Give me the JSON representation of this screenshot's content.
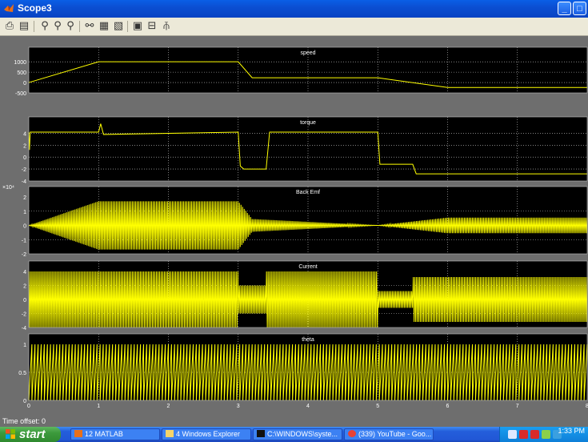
{
  "window": {
    "title": "Scope3"
  },
  "toolbar": {
    "icons": [
      "print-icon",
      "parameters-icon",
      "zoom-icon",
      "zoom-x-icon",
      "zoom-y-icon",
      "autoscale-icon",
      "save-axes-icon",
      "restore-axes-icon",
      "floating-scope-icon",
      "lock-axes-icon",
      "signal-selection-icon"
    ]
  },
  "time_offset": "Time offset:  0",
  "chart_data": [
    {
      "type": "line",
      "title": "speed",
      "ylim": [
        -500,
        1200
      ],
      "yticks": [
        "1000",
        "500",
        "0",
        "-500"
      ],
      "xlim": [
        0,
        8
      ],
      "color": "#ffff00",
      "grid": true,
      "series": [
        {
          "x": [
            0,
            1,
            3,
            3.2,
            5,
            6,
            8
          ],
          "values": [
            0,
            1000,
            1000,
            230,
            230,
            -240,
            -240
          ]
        }
      ]
    },
    {
      "type": "line",
      "title": "torque",
      "ylim": [
        -4,
        5
      ],
      "yticks": [
        "4",
        "2",
        "0",
        "-2",
        "-4"
      ],
      "xlim": [
        0,
        8
      ],
      "color": "#ffff00",
      "grid": true,
      "series": [
        {
          "x": [
            0,
            0.01,
            0.02,
            1,
            1.03,
            1.07,
            3,
            3.03,
            3.08,
            3.4,
            3.45,
            5,
            5.03,
            5.08,
            5.5,
            5.55,
            8
          ],
          "values": [
            4.2,
            1.2,
            4.2,
            4.2,
            5.6,
            3.8,
            4.2,
            -1.5,
            -2.0,
            -2.0,
            4.2,
            4.2,
            -1.2,
            -1.2,
            -1.2,
            -2.8,
            -2.8
          ]
        }
      ]
    },
    {
      "type": "line",
      "title": "Back Emf",
      "exponent": "x 10^4",
      "ylim": [
        -2,
        2
      ],
      "yticks": [
        "2",
        "1",
        "0",
        "-1",
        "-2"
      ],
      "xlim": [
        0,
        8
      ],
      "color": "#ffff00",
      "grid": true,
      "note": "oscillating; envelope grows 0-1, constant ~1.7 to 3, drops to ~0.5 then decays to 0 at 5, grows to ~0.55 by 6, constant to 8",
      "envelope": {
        "x": [
          0,
          1,
          3,
          3.2,
          5,
          6,
          8
        ],
        "values": [
          0,
          1.7,
          1.7,
          0.45,
          0,
          0.55,
          0.55
        ]
      }
    },
    {
      "type": "line",
      "title": "Current",
      "ylim": [
        -4,
        4
      ],
      "yticks": [
        "4",
        "2",
        "0",
        "-2",
        "-4"
      ],
      "xlim": [
        0,
        8
      ],
      "color": "#ffff00",
      "grid": true,
      "envelope": {
        "x": [
          0,
          3,
          3,
          3.4,
          3.4,
          5,
          5,
          5.5,
          5.5,
          8
        ],
        "values": [
          4,
          4,
          2,
          2,
          4,
          4,
          1.2,
          1.2,
          3.2,
          3.2
        ]
      }
    },
    {
      "type": "line",
      "title": "theta",
      "ylim": [
        0,
        1
      ],
      "yticks": [
        "1",
        "0.5",
        "0"
      ],
      "xlim": [
        0,
        8
      ],
      "xticks": [
        "0",
        "1",
        "2",
        "3",
        "4",
        "5",
        "6",
        "7",
        "8"
      ],
      "color": "#ffff00",
      "grid": true,
      "note": "dense sawtooth 0-1 throughout"
    }
  ],
  "taskbar": {
    "start_label": "start",
    "tasks": [
      "12 MATLAB",
      "4 Windows Explorer",
      "C:\\WINDOWS\\syste...",
      "(339) YouTube - Goo..."
    ],
    "clock": "1:33 PM"
  },
  "colors": {
    "background": "#6e6e6e",
    "axes": "#000000",
    "trace": "#ffff00",
    "grid": "#d9d9d9"
  }
}
